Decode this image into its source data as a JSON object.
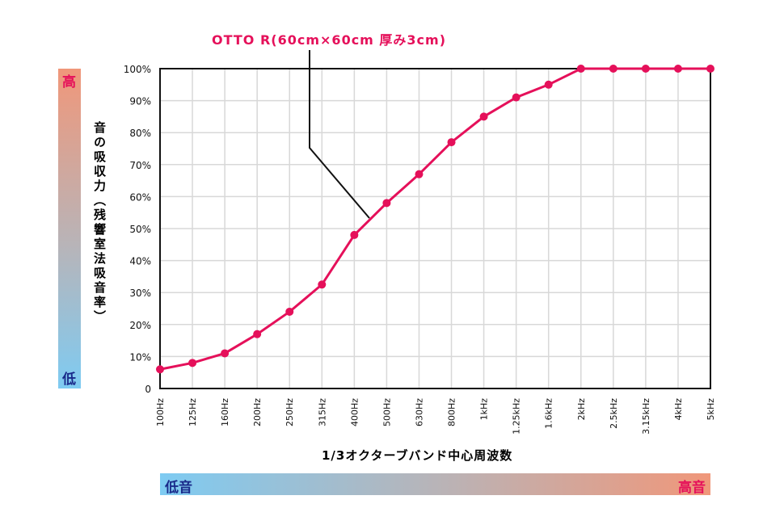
{
  "chart_data": {
    "type": "line",
    "title": "OTTO R(60cm×60cm 厚み3cm)",
    "xlabel": "1/3オクターブバンド中心周波数",
    "ylabel": "音の吸収力（残響室法吸音率）",
    "categories": [
      "100Hz",
      "125Hz",
      "160Hz",
      "200Hz",
      "250Hz",
      "315Hz",
      "400Hz",
      "500Hz",
      "630Hz",
      "800Hz",
      "1kHz",
      "1.25kHz",
      "1.6kHz",
      "2kHz",
      "2.5kHz",
      "3.15kHz",
      "4kHz",
      "5kHz"
    ],
    "series": [
      {
        "name": "OTTO R(60cm×60cm 厚み3cm)",
        "values": [
          6,
          8,
          11,
          17,
          24,
          32.5,
          48,
          58,
          67,
          77,
          85,
          91,
          95,
          100,
          100,
          100,
          100,
          100
        ]
      }
    ],
    "ylim": [
      0,
      100
    ],
    "yticks": [
      "0",
      "10%",
      "20%",
      "30%",
      "40%",
      "50%",
      "60%",
      "70%",
      "80%",
      "90%",
      "100%"
    ],
    "grid": true,
    "line_color": "#e5105a"
  },
  "scales": {
    "vertical": {
      "high": "高",
      "low": "低"
    },
    "horizontal": {
      "low": "低音",
      "high": "高音"
    }
  }
}
